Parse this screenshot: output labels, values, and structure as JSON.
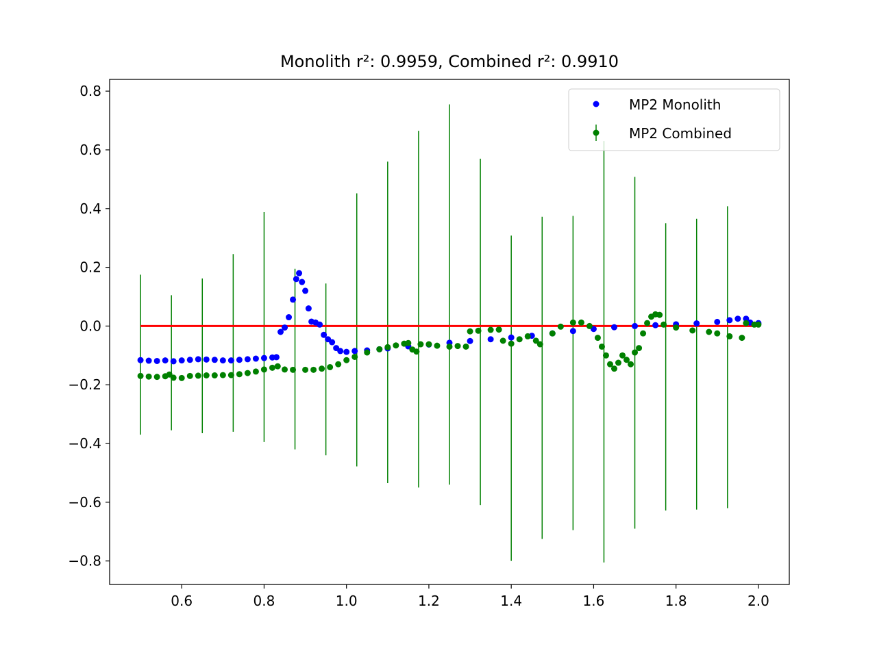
{
  "colors": {
    "background": "#ffffff",
    "monolith": "#0000ff",
    "combined": "#008000",
    "reference": "#ff0000",
    "axes": "#000000"
  },
  "chart_data": {
    "type": "scatter",
    "title": "Monolith r²: 0.9959, Combined r²: 0.9910",
    "xlabel": "",
    "ylabel": "",
    "xlim": [
      0.425,
      2.075
    ],
    "ylim": [
      -0.88,
      0.84
    ],
    "xticks": [
      0.6,
      0.8,
      1.0,
      1.2,
      1.4,
      1.6,
      1.8,
      2.0
    ],
    "xtick_labels": [
      "0.6",
      "0.8",
      "1.0",
      "1.2",
      "1.4",
      "1.6",
      "1.8",
      "2.0"
    ],
    "yticks": [
      -0.8,
      -0.6,
      -0.4,
      -0.2,
      0.0,
      0.2,
      0.4,
      0.6,
      0.8
    ],
    "ytick_labels": [
      "−0.8",
      "−0.6",
      "−0.4",
      "−0.2",
      "0.0",
      "0.2",
      "0.4",
      "0.6",
      "0.8"
    ],
    "grid": false,
    "legend_position": "top-right",
    "reference_line": {
      "x": [
        0.5,
        2.0
      ],
      "y": [
        0.0,
        0.0
      ]
    },
    "series": [
      {
        "name": "MP2 Monolith",
        "marker": "dot",
        "points": [
          [
            0.5,
            -0.116
          ],
          [
            0.52,
            -0.118
          ],
          [
            0.54,
            -0.119
          ],
          [
            0.56,
            -0.117
          ],
          [
            0.58,
            -0.12
          ],
          [
            0.6,
            -0.117
          ],
          [
            0.62,
            -0.115
          ],
          [
            0.64,
            -0.113
          ],
          [
            0.66,
            -0.114
          ],
          [
            0.68,
            -0.115
          ],
          [
            0.7,
            -0.117
          ],
          [
            0.72,
            -0.117
          ],
          [
            0.74,
            -0.115
          ],
          [
            0.76,
            -0.113
          ],
          [
            0.78,
            -0.111
          ],
          [
            0.8,
            -0.109
          ],
          [
            0.82,
            -0.107
          ],
          [
            0.83,
            -0.106
          ],
          [
            0.84,
            -0.02
          ],
          [
            0.85,
            -0.005
          ],
          [
            0.86,
            0.03
          ],
          [
            0.87,
            0.09
          ],
          [
            0.878,
            0.16
          ],
          [
            0.885,
            0.18
          ],
          [
            0.892,
            0.15
          ],
          [
            0.9,
            0.12
          ],
          [
            0.908,
            0.06
          ],
          [
            0.915,
            0.015
          ],
          [
            0.925,
            0.012
          ],
          [
            0.935,
            0.005
          ],
          [
            0.945,
            -0.03
          ],
          [
            0.955,
            -0.045
          ],
          [
            0.965,
            -0.055
          ],
          [
            0.975,
            -0.075
          ],
          [
            0.985,
            -0.085
          ],
          [
            1.0,
            -0.088
          ],
          [
            1.02,
            -0.085
          ],
          [
            1.05,
            -0.083
          ],
          [
            1.08,
            -0.079
          ],
          [
            1.1,
            -0.076
          ],
          [
            1.15,
            -0.069
          ],
          [
            1.2,
            -0.063
          ],
          [
            1.25,
            -0.057
          ],
          [
            1.3,
            -0.051
          ],
          [
            1.35,
            -0.045
          ],
          [
            1.4,
            -0.039
          ],
          [
            1.45,
            -0.033
          ],
          [
            1.5,
            -0.025
          ],
          [
            1.55,
            -0.017
          ],
          [
            1.6,
            -0.01
          ],
          [
            1.65,
            -0.004
          ],
          [
            1.7,
            0.0
          ],
          [
            1.75,
            0.003
          ],
          [
            1.8,
            0.006
          ],
          [
            1.85,
            0.009
          ],
          [
            1.9,
            0.014
          ],
          [
            1.93,
            0.02
          ],
          [
            1.95,
            0.025
          ],
          [
            1.97,
            0.025
          ],
          [
            1.98,
            0.012
          ],
          [
            2.0,
            0.01
          ]
        ]
      },
      {
        "name": "MP2 Combined",
        "marker": "errorbar",
        "points": [
          [
            0.5,
            -0.17
          ],
          [
            0.52,
            -0.172
          ],
          [
            0.54,
            -0.173
          ],
          [
            0.56,
            -0.171
          ],
          [
            0.57,
            -0.165
          ],
          [
            0.58,
            -0.176
          ],
          [
            0.6,
            -0.177
          ],
          [
            0.62,
            -0.17
          ],
          [
            0.64,
            -0.169
          ],
          [
            0.66,
            -0.168
          ],
          [
            0.68,
            -0.168
          ],
          [
            0.7,
            -0.167
          ],
          [
            0.72,
            -0.167
          ],
          [
            0.74,
            -0.164
          ],
          [
            0.76,
            -0.16
          ],
          [
            0.78,
            -0.155
          ],
          [
            0.8,
            -0.148
          ],
          [
            0.82,
            -0.142
          ],
          [
            0.833,
            -0.137
          ],
          [
            0.85,
            -0.148
          ],
          [
            0.87,
            -0.149
          ],
          [
            0.9,
            -0.149
          ],
          [
            0.92,
            -0.149
          ],
          [
            0.94,
            -0.145
          ],
          [
            0.96,
            -0.14
          ],
          [
            0.98,
            -0.13
          ],
          [
            1.0,
            -0.116
          ],
          [
            1.02,
            -0.105
          ],
          [
            1.05,
            -0.09
          ],
          [
            1.08,
            -0.079
          ],
          [
            1.1,
            -0.072
          ],
          [
            1.12,
            -0.066
          ],
          [
            1.14,
            -0.06
          ],
          [
            1.15,
            -0.058
          ],
          [
            1.16,
            -0.08
          ],
          [
            1.17,
            -0.087
          ],
          [
            1.18,
            -0.062
          ],
          [
            1.2,
            -0.062
          ],
          [
            1.22,
            -0.067
          ],
          [
            1.25,
            -0.07
          ],
          [
            1.27,
            -0.068
          ],
          [
            1.29,
            -0.07
          ],
          [
            1.3,
            -0.018
          ],
          [
            1.32,
            -0.016
          ],
          [
            1.35,
            -0.013
          ],
          [
            1.37,
            -0.012
          ],
          [
            1.38,
            -0.05
          ],
          [
            1.4,
            -0.06
          ],
          [
            1.42,
            -0.045
          ],
          [
            1.44,
            -0.035
          ],
          [
            1.46,
            -0.05
          ],
          [
            1.47,
            -0.062
          ],
          [
            1.5,
            -0.025
          ],
          [
            1.52,
            -0.002
          ],
          [
            1.55,
            0.012
          ],
          [
            1.57,
            0.012
          ],
          [
            1.59,
            0.0
          ],
          [
            1.61,
            -0.04
          ],
          [
            1.62,
            -0.07
          ],
          [
            1.63,
            -0.1
          ],
          [
            1.64,
            -0.13
          ],
          [
            1.65,
            -0.145
          ],
          [
            1.66,
            -0.125
          ],
          [
            1.67,
            -0.1
          ],
          [
            1.68,
            -0.115
          ],
          [
            1.69,
            -0.13
          ],
          [
            1.7,
            -0.09
          ],
          [
            1.71,
            -0.075
          ],
          [
            1.72,
            -0.025
          ],
          [
            1.73,
            0.01
          ],
          [
            1.74,
            0.032
          ],
          [
            1.75,
            0.04
          ],
          [
            1.76,
            0.038
          ],
          [
            1.77,
            0.005
          ],
          [
            1.8,
            -0.005
          ],
          [
            1.84,
            -0.015
          ],
          [
            1.88,
            -0.02
          ],
          [
            1.9,
            -0.025
          ],
          [
            1.93,
            -0.035
          ],
          [
            1.96,
            -0.04
          ],
          [
            1.97,
            0.01
          ],
          [
            1.99,
            0.005
          ],
          [
            2.0,
            0.005
          ]
        ],
        "errorbars": [
          {
            "x": 0.5,
            "low": -0.37,
            "high": 0.175
          },
          {
            "x": 0.575,
            "low": -0.355,
            "high": 0.105
          },
          {
            "x": 0.65,
            "low": -0.365,
            "high": 0.162
          },
          {
            "x": 0.725,
            "low": -0.36,
            "high": 0.245
          },
          {
            "x": 0.8,
            "low": -0.395,
            "high": 0.388
          },
          {
            "x": 0.875,
            "low": -0.42,
            "high": 0.195
          },
          {
            "x": 0.95,
            "low": -0.44,
            "high": 0.145
          },
          {
            "x": 1.025,
            "low": -0.478,
            "high": 0.452
          },
          {
            "x": 1.1,
            "low": -0.535,
            "high": 0.56
          },
          {
            "x": 1.175,
            "low": -0.55,
            "high": 0.665
          },
          {
            "x": 1.25,
            "low": -0.54,
            "high": 0.755
          },
          {
            "x": 1.325,
            "low": -0.61,
            "high": 0.57
          },
          {
            "x": 1.4,
            "low": -0.8,
            "high": 0.308
          },
          {
            "x": 1.475,
            "low": -0.725,
            "high": 0.372
          },
          {
            "x": 1.55,
            "low": -0.695,
            "high": 0.375
          },
          {
            "x": 1.625,
            "low": -0.805,
            "high": 0.63
          },
          {
            "x": 1.7,
            "low": -0.69,
            "high": 0.508
          },
          {
            "x": 1.775,
            "low": -0.628,
            "high": 0.35
          },
          {
            "x": 1.85,
            "low": -0.625,
            "high": 0.365
          },
          {
            "x": 1.925,
            "low": -0.62,
            "high": 0.408
          }
        ]
      }
    ]
  }
}
